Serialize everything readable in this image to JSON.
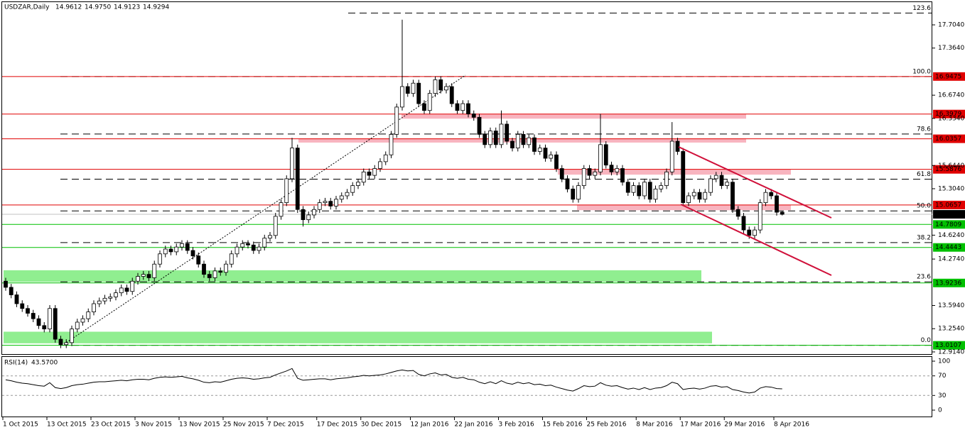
{
  "chart_data": {
    "type": "candlestick",
    "title": "USDZAR,Daily",
    "header_values": [
      {
        "value": 14.9612,
        "label": "14.9612"
      },
      {
        "value": 14.975,
        "label": "14.9750"
      },
      {
        "value": 14.9123,
        "label": "14.9123"
      },
      {
        "value": 14.9294,
        "label": "14.9294"
      }
    ],
    "categories": [
      "1 Oct 2015",
      null,
      null,
      null,
      null,
      null,
      null,
      null,
      "13 Oct 2015",
      null,
      null,
      null,
      null,
      null,
      null,
      null,
      "23 Oct 2015",
      null,
      null,
      null,
      null,
      null,
      null,
      null,
      "3 Nov 2015",
      null,
      null,
      null,
      null,
      null,
      null,
      null,
      "13 Nov 2015",
      null,
      null,
      null,
      null,
      null,
      null,
      null,
      "25 Nov 2015",
      null,
      null,
      null,
      null,
      null,
      null,
      null,
      "7 Dec 2015",
      null,
      null,
      null,
      null,
      null,
      null,
      null,
      null,
      "17 Dec 2015",
      null,
      null,
      null,
      null,
      null,
      null,
      null,
      "30 Dec 2015",
      null,
      null,
      null,
      null,
      null,
      null,
      null,
      null,
      "12 Jan 2016",
      null,
      null,
      null,
      null,
      null,
      null,
      null,
      "22 Jan 2016",
      null,
      null,
      null,
      null,
      null,
      null,
      null,
      "3 Feb 2016",
      null,
      null,
      null,
      null,
      null,
      null,
      null,
      "15 Feb 2016",
      null,
      null,
      null,
      null,
      null,
      null,
      null,
      "25 Feb 2016",
      null,
      null,
      null,
      null,
      null,
      null,
      null,
      null,
      "8 Mar 2016",
      null,
      null,
      null,
      null,
      null,
      null,
      null,
      "17 Mar 2016",
      null,
      null,
      null,
      null,
      null,
      null,
      null,
      "29 Mar 2016",
      null,
      null,
      null,
      null,
      null,
      null,
      null,
      null,
      "8 Apr 2016",
      null
    ],
    "ohlc": [
      [
        13.95,
        14.0,
        13.81,
        13.86
      ],
      [
        13.86,
        13.91,
        13.7,
        13.75
      ],
      [
        13.75,
        13.8,
        13.57,
        13.62
      ],
      [
        13.62,
        13.67,
        13.5,
        13.55
      ],
      [
        13.55,
        13.6,
        13.43,
        13.48
      ],
      [
        13.48,
        13.53,
        13.35,
        13.4
      ],
      [
        13.4,
        13.45,
        13.25,
        13.3
      ],
      [
        13.3,
        13.35,
        13.2,
        13.25
      ],
      [
        13.25,
        13.6,
        13.2,
        13.55
      ],
      [
        13.55,
        13.6,
        13.05,
        13.1
      ],
      [
        13.1,
        13.15,
        12.97,
        13.02
      ],
      [
        13.02,
        13.1,
        12.97,
        13.05
      ],
      [
        13.05,
        13.3,
        13.0,
        13.25
      ],
      [
        13.25,
        13.4,
        13.2,
        13.35
      ],
      [
        13.35,
        13.45,
        13.3,
        13.4
      ],
      [
        13.4,
        13.55,
        13.35,
        13.5
      ],
      [
        13.5,
        13.67,
        13.45,
        13.62
      ],
      [
        13.62,
        13.71,
        13.57,
        13.66
      ],
      [
        13.66,
        13.75,
        13.61,
        13.7
      ],
      [
        13.7,
        13.77,
        13.65,
        13.72
      ],
      [
        13.72,
        13.83,
        13.67,
        13.78
      ],
      [
        13.78,
        13.9,
        13.73,
        13.85
      ],
      [
        13.85,
        13.9,
        13.75,
        13.8
      ],
      [
        13.8,
        14.0,
        13.75,
        13.95
      ],
      [
        13.95,
        14.07,
        13.9,
        14.02
      ],
      [
        14.02,
        14.1,
        13.97,
        14.05
      ],
      [
        14.05,
        14.1,
        13.95,
        14.0
      ],
      [
        14.0,
        14.25,
        13.95,
        14.2
      ],
      [
        14.2,
        14.4,
        14.15,
        14.35
      ],
      [
        14.35,
        14.47,
        14.3,
        14.42
      ],
      [
        14.42,
        14.47,
        14.33,
        14.38
      ],
      [
        14.38,
        14.5,
        14.33,
        14.45
      ],
      [
        14.45,
        14.55,
        14.4,
        14.5
      ],
      [
        14.5,
        14.55,
        14.35,
        14.4
      ],
      [
        14.4,
        14.45,
        14.27,
        14.32
      ],
      [
        14.32,
        14.37,
        14.15,
        14.2
      ],
      [
        14.2,
        14.25,
        14.0,
        14.05
      ],
      [
        14.05,
        14.1,
        13.95,
        14.0
      ],
      [
        14.0,
        14.15,
        13.95,
        14.1
      ],
      [
        14.1,
        14.15,
        14.03,
        14.08
      ],
      [
        14.08,
        14.25,
        14.03,
        14.2
      ],
      [
        14.2,
        14.4,
        14.15,
        14.35
      ],
      [
        14.35,
        14.5,
        14.3,
        14.45
      ],
      [
        14.45,
        14.55,
        14.4,
        14.5
      ],
      [
        14.5,
        14.55,
        14.43,
        14.48
      ],
      [
        14.48,
        14.53,
        14.35,
        14.4
      ],
      [
        14.4,
        14.5,
        14.35,
        14.45
      ],
      [
        14.45,
        14.63,
        14.4,
        14.58
      ],
      [
        14.58,
        14.67,
        14.53,
        14.62
      ],
      [
        14.62,
        14.95,
        14.57,
        14.9
      ],
      [
        14.9,
        15.15,
        14.85,
        15.1
      ],
      [
        15.1,
        15.5,
        15.05,
        15.45
      ],
      [
        15.45,
        16.05,
        15.4,
        15.9
      ],
      [
        15.9,
        15.95,
        14.95,
        15.0
      ],
      [
        15.0,
        15.05,
        14.75,
        14.85
      ],
      [
        14.85,
        14.97,
        14.8,
        14.92
      ],
      [
        14.92,
        15.05,
        14.87,
        15.0
      ],
      [
        15.0,
        15.15,
        14.95,
        15.1
      ],
      [
        15.1,
        15.17,
        15.05,
        15.12
      ],
      [
        15.12,
        15.17,
        15.0,
        15.05
      ],
      [
        15.05,
        15.2,
        15.0,
        15.15
      ],
      [
        15.15,
        15.25,
        15.1,
        15.2
      ],
      [
        15.2,
        15.3,
        15.15,
        15.25
      ],
      [
        15.25,
        15.4,
        15.2,
        15.35
      ],
      [
        15.35,
        15.45,
        15.3,
        15.4
      ],
      [
        15.4,
        15.6,
        15.35,
        15.55
      ],
      [
        15.55,
        15.6,
        15.45,
        15.5
      ],
      [
        15.5,
        15.65,
        15.45,
        15.6
      ],
      [
        15.6,
        15.75,
        15.55,
        15.7
      ],
      [
        15.7,
        15.85,
        15.65,
        15.8
      ],
      [
        15.8,
        16.15,
        15.75,
        16.1
      ],
      [
        16.1,
        16.55,
        16.05,
        16.5
      ],
      [
        16.5,
        17.78,
        16.45,
        16.8
      ],
      [
        16.8,
        16.85,
        16.65,
        16.7
      ],
      [
        16.7,
        16.9,
        16.65,
        16.85
      ],
      [
        16.85,
        16.9,
        16.5,
        16.55
      ],
      [
        16.55,
        16.6,
        16.4,
        16.45
      ],
      [
        16.45,
        16.75,
        16.4,
        16.7
      ],
      [
        16.7,
        16.95,
        16.65,
        16.9
      ],
      [
        16.9,
        16.95,
        16.7,
        16.75
      ],
      [
        16.75,
        16.85,
        16.7,
        16.8
      ],
      [
        16.8,
        16.85,
        16.5,
        16.55
      ],
      [
        16.55,
        16.6,
        16.4,
        16.45
      ],
      [
        16.45,
        16.6,
        16.4,
        16.55
      ],
      [
        16.55,
        16.6,
        16.35,
        16.4
      ],
      [
        16.4,
        16.45,
        16.3,
        16.35
      ],
      [
        16.35,
        16.4,
        16.05,
        16.1
      ],
      [
        16.1,
        16.15,
        15.9,
        15.95
      ],
      [
        15.95,
        16.2,
        15.9,
        16.15
      ],
      [
        16.15,
        16.2,
        15.9,
        15.95
      ],
      [
        15.95,
        16.45,
        15.9,
        16.25
      ],
      [
        16.25,
        16.3,
        15.95,
        16.0
      ],
      [
        16.0,
        16.05,
        15.85,
        15.9
      ],
      [
        15.9,
        16.15,
        15.85,
        16.1
      ],
      [
        16.1,
        16.15,
        15.9,
        15.95
      ],
      [
        15.95,
        16.1,
        15.9,
        16.05
      ],
      [
        16.05,
        16.1,
        15.8,
        15.85
      ],
      [
        15.85,
        15.95,
        15.8,
        15.9
      ],
      [
        15.9,
        15.95,
        15.7,
        15.75
      ],
      [
        15.75,
        15.85,
        15.7,
        15.8
      ],
      [
        15.8,
        15.85,
        15.55,
        15.6
      ],
      [
        15.6,
        15.65,
        15.4,
        15.45
      ],
      [
        15.45,
        15.5,
        15.25,
        15.3
      ],
      [
        15.3,
        15.35,
        15.1,
        15.15
      ],
      [
        15.15,
        15.4,
        15.1,
        15.35
      ],
      [
        15.35,
        15.65,
        15.3,
        15.6
      ],
      [
        15.6,
        15.65,
        15.45,
        15.5
      ],
      [
        15.5,
        15.6,
        15.45,
        15.55
      ],
      [
        15.55,
        16.4,
        15.5,
        15.95
      ],
      [
        15.95,
        16.0,
        15.6,
        15.65
      ],
      [
        15.65,
        15.7,
        15.5,
        15.55
      ],
      [
        15.55,
        15.65,
        15.5,
        15.6
      ],
      [
        15.6,
        15.65,
        15.35,
        15.4
      ],
      [
        15.4,
        15.45,
        15.2,
        15.25
      ],
      [
        15.25,
        15.4,
        15.2,
        15.35
      ],
      [
        15.35,
        15.4,
        15.15,
        15.2
      ],
      [
        15.2,
        15.45,
        15.15,
        15.4
      ],
      [
        15.4,
        15.45,
        15.1,
        15.15
      ],
      [
        15.15,
        15.35,
        15.1,
        15.3
      ],
      [
        15.3,
        15.4,
        15.25,
        15.35
      ],
      [
        15.35,
        15.6,
        15.3,
        15.55
      ],
      [
        15.55,
        16.28,
        15.5,
        16.0
      ],
      [
        16.0,
        16.05,
        15.8,
        15.85
      ],
      [
        15.85,
        15.9,
        15.05,
        15.1
      ],
      [
        15.1,
        15.25,
        15.05,
        15.2
      ],
      [
        15.2,
        15.3,
        15.15,
        15.25
      ],
      [
        15.25,
        15.3,
        15.1,
        15.15
      ],
      [
        15.15,
        15.3,
        15.1,
        15.25
      ],
      [
        15.25,
        15.5,
        15.2,
        15.45
      ],
      [
        15.45,
        15.55,
        15.4,
        15.5
      ],
      [
        15.5,
        15.55,
        15.3,
        15.35
      ],
      [
        15.35,
        15.45,
        15.3,
        15.4
      ],
      [
        15.4,
        15.45,
        14.95,
        15.0
      ],
      [
        15.0,
        15.05,
        14.85,
        14.9
      ],
      [
        14.9,
        14.95,
        14.65,
        14.7
      ],
      [
        14.7,
        14.75,
        14.57,
        14.62
      ],
      [
        14.62,
        14.75,
        14.57,
        14.7
      ],
      [
        14.7,
        15.15,
        14.65,
        15.1
      ],
      [
        15.1,
        15.3,
        15.05,
        15.25
      ],
      [
        15.25,
        15.3,
        15.15,
        15.2
      ],
      [
        15.2,
        15.25,
        14.91,
        14.96
      ],
      [
        14.9612,
        14.975,
        14.9123,
        14.9294
      ]
    ],
    "ylim": [
      12.872,
      18.068
    ],
    "yticks": [
      {
        "value": 17.704,
        "label": "17.7040"
      },
      {
        "value": 17.364,
        "label": "17.3640"
      },
      {
        "value": 16.674,
        "label": "16.6740"
      },
      {
        "value": 16.334,
        "label": "16.3340"
      },
      {
        "value": 15.644,
        "label": "15.6440"
      },
      {
        "value": 15.304,
        "label": "15.3040"
      },
      {
        "value": 14.624,
        "label": "14.6240"
      },
      {
        "value": 14.274,
        "label": "14.2740"
      },
      {
        "value": 13.594,
        "label": "13.5940"
      },
      {
        "value": 13.254,
        "label": "13.2540"
      },
      {
        "value": 12.914,
        "label": "12.9140"
      }
    ],
    "bull_color": "#ffffff",
    "bear_color": "#000000",
    "levels": [
      {
        "value": 16.9475,
        "label": "16.9475",
        "color": "#e00000"
      },
      {
        "value": 16.3979,
        "label": "16.3979",
        "color": "#e00000"
      },
      {
        "value": 16.0357,
        "label": "16.0357",
        "color": "#e00000"
      },
      {
        "value": 15.5876,
        "label": "15.5876",
        "color": "#e00000"
      },
      {
        "value": 15.0657,
        "label": "15.0657",
        "color": "#e00000"
      },
      {
        "value": 14.7809,
        "label": "14.7809",
        "color": "#00c000"
      },
      {
        "value": 14.4443,
        "label": "14.4443",
        "color": "#00c000"
      },
      {
        "value": 13.9236,
        "label": "13.9236",
        "color": "#00c000"
      },
      {
        "value": 13.0107,
        "label": "13.0107",
        "color": "#00c000"
      }
    ],
    "current_price": {
      "value": 14.9294,
      "label": "14.9294"
    },
    "fibonacci": [
      {
        "level": {
          "value": 123.6,
          "label": "123.6"
        },
        "price": 17.8765
      },
      {
        "level": {
          "value": 100,
          "label": "100.0"
        },
        "price": 16.9475
      },
      {
        "level": {
          "value": 78.6,
          "label": "78.6"
        },
        "price": 16.105
      },
      {
        "level": {
          "value": 61.8,
          "label": "61.8"
        },
        "price": 15.4436
      },
      {
        "level": {
          "value": 50,
          "label": "50.0"
        },
        "price": 14.9791
      },
      {
        "level": {
          "value": 38.2,
          "label": "38.2"
        },
        "price": 14.5146
      },
      {
        "level": {
          "value": 23.6,
          "label": "23.6"
        },
        "price": 13.9398
      },
      {
        "level": {
          "value": 0,
          "label": "0.0"
        },
        "price": 13.0107
      }
    ],
    "zones": [
      {
        "low": 16.33,
        "high": 16.4,
        "color": "#f8b4bf"
      },
      {
        "low": 15.98,
        "high": 16.04,
        "color": "#f8b4bf"
      },
      {
        "low": 15.51,
        "high": 15.59,
        "color": "#f8b4bf"
      },
      {
        "low": 14.99,
        "high": 15.07,
        "color": "#f8b4bf"
      },
      {
        "low": 13.94,
        "high": 14.11,
        "color": "#90ee90"
      },
      {
        "low": 13.04,
        "high": 13.21,
        "color": "#90ee90"
      }
    ],
    "rsi": {
      "label": "RSI(14)",
      "value": {
        "value": 43.57,
        "label": "43.5700"
      },
      "color": "#000000",
      "ylim": [
        0,
        100
      ],
      "yticks": [
        100,
        70,
        30,
        0
      ],
      "values": [
        62,
        60,
        57,
        55,
        54,
        52,
        50,
        49,
        56,
        46,
        44,
        46,
        50,
        52,
        53,
        55,
        57,
        58,
        58,
        59,
        60,
        61,
        60,
        62,
        63,
        63,
        62,
        65,
        67,
        68,
        67,
        68,
        69,
        66,
        64,
        61,
        57,
        56,
        58,
        57,
        60,
        63,
        65,
        66,
        65,
        63,
        64,
        66,
        67,
        72,
        76,
        80,
        85,
        65,
        61,
        62,
        63,
        64,
        64,
        62,
        64,
        65,
        66,
        68,
        69,
        71,
        70,
        71,
        72,
        74,
        77,
        80,
        82,
        80,
        81,
        73,
        70,
        74,
        76,
        72,
        73,
        67,
        65,
        67,
        63,
        62,
        57,
        54,
        58,
        54,
        60,
        55,
        53,
        57,
        54,
        56,
        52,
        53,
        50,
        51,
        47,
        44,
        41,
        39,
        44,
        50,
        48,
        49,
        56,
        51,
        49,
        50,
        46,
        43,
        45,
        42,
        46,
        42,
        45,
        46,
        50,
        57,
        54,
        42,
        44,
        45,
        43,
        45,
        49,
        50,
        47,
        48,
        42,
        40,
        37,
        35,
        37,
        45,
        48,
        47,
        44,
        43.57
      ]
    }
  }
}
